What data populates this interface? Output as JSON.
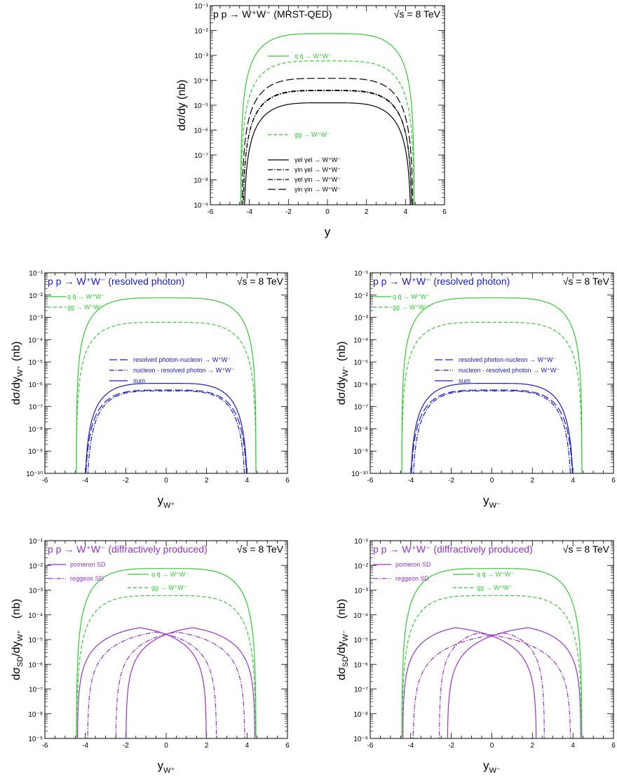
{
  "chart_data": [
    {
      "type": "line",
      "title": "p p → W⁺W⁻ (MRST-QED)",
      "energy": "√s = 8 TeV",
      "xlabel": "y",
      "ylabel": "dσ/dy (nb)",
      "xlim": [
        -6,
        6
      ],
      "ylim_log10": [
        -9,
        -1
      ],
      "y_scale": "log",
      "x_ticks": [
        "-6",
        "-4",
        "-2",
        "0",
        "2",
        "4",
        "6"
      ],
      "y_ticks": [
        "10⁻¹",
        "10⁻²",
        "10⁻³",
        "10⁻⁴",
        "10⁻⁵",
        "10⁻⁶",
        "10⁻⁷",
        "10⁻⁸",
        "10⁻⁹"
      ],
      "series": [
        {
          "name": "q q̄ → W⁺W⁻",
          "color": "#33cc33",
          "style": "solid",
          "peak": 0.0075,
          "edge": 4.45,
          "p": 1.3
        },
        {
          "name": "gg → W⁺W⁻",
          "color": "#33cc33",
          "style": "dashed",
          "peak": 0.0006,
          "edge": 4.45,
          "p": 1.3
        },
        {
          "name": "γel γel → W⁺W⁻",
          "color": "#000000",
          "style": "solid",
          "peak": 1.25e-05,
          "edge": 4.3,
          "p": 1.3
        },
        {
          "name": "γin γel → W⁺W⁻",
          "color": "#000000",
          "style": "dashdot",
          "peak": 4e-05,
          "edge": 4.35,
          "p": 1.3
        },
        {
          "name": "γel γin → W⁺W⁻",
          "color": "#000000",
          "style": "dashdot",
          "peak": 3.8e-05,
          "edge": 4.35,
          "p": 1.3
        },
        {
          "name": "γin γin → W⁺W⁻",
          "color": "#000000",
          "style": "longdash",
          "peak": 0.00012,
          "edge": 4.4,
          "p": 1.3
        }
      ]
    },
    {
      "type": "line",
      "title": "p p → W⁺W⁻ (resolved photon)",
      "energy": "√s = 8 TeV",
      "xlabel": "y",
      "xsub": "W⁺",
      "ylabel": "dσ/dy",
      "ysub": "W⁺",
      "yunit": "(nb)",
      "xlim": [
        -6,
        6
      ],
      "ylim_log10": [
        -10,
        -1
      ],
      "y_scale": "log",
      "x_ticks": [
        "-6",
        "-4",
        "-2",
        "0",
        "2",
        "4",
        "6"
      ],
      "y_ticks": [
        "10⁻¹",
        "10⁻²",
        "10⁻³",
        "10⁻⁴",
        "10⁻⁵",
        "10⁻⁶",
        "10⁻⁷",
        "10⁻⁸",
        "10⁻⁹",
        "10⁻¹⁰"
      ],
      "series": [
        {
          "name": "q q̄ → W⁺W⁻",
          "color": "#33cc33",
          "style": "solid",
          "peak": 0.0075,
          "edge": 4.45,
          "p": 1.3
        },
        {
          "name": "gg → W⁺W⁻",
          "color": "#33cc33",
          "style": "dashed",
          "peak": 0.0006,
          "edge": 4.45,
          "p": 1.3
        },
        {
          "name": "resolved photon-nucleon  → W⁺W⁻",
          "color": "#1a1acc",
          "style": "longdash",
          "peak": 5.5e-07,
          "edge": 4.05,
          "p": 1.4
        },
        {
          "name": "nucleon - resolved photon → W⁺W⁻",
          "color": "#1a1acc",
          "style": "dashdot",
          "peak": 5e-07,
          "edge": 3.95,
          "p": 1.4
        },
        {
          "name": "sum",
          "color": "#1a1acc",
          "style": "solid",
          "peak": 1.1e-06,
          "edge": 4.05,
          "p": 1.4
        }
      ]
    },
    {
      "type": "line",
      "title": "p p → W⁺W⁻ (resolved photon)",
      "energy": "√s = 8 TeV",
      "xlabel": "y",
      "xsub": "W⁻",
      "ylabel": "dσ/dy",
      "ysub": "W⁻",
      "yunit": "(nb)",
      "xlim": [
        -6,
        6
      ],
      "ylim_log10": [
        -10,
        -1
      ],
      "y_scale": "log",
      "x_ticks": [
        "-6",
        "-4",
        "-2",
        "0",
        "2",
        "4",
        "6"
      ],
      "y_ticks": [
        "10⁻¹",
        "10⁻²",
        "10⁻³",
        "10⁻⁴",
        "10⁻⁵",
        "10⁻⁶",
        "10⁻⁷",
        "10⁻⁸",
        "10⁻⁹",
        "10⁻¹⁰"
      ],
      "series": [
        {
          "name": "q q̄ → W⁺W⁻",
          "color": "#33cc33",
          "style": "solid",
          "peak": 0.0075,
          "edge": 4.45,
          "p": 1.3
        },
        {
          "name": "gg → W⁺W⁻",
          "color": "#33cc33",
          "style": "dashed",
          "peak": 0.0006,
          "edge": 4.45,
          "p": 1.3
        },
        {
          "name": "resolved photon-nucleon  → W⁺W⁻",
          "color": "#1a1acc",
          "style": "longdash",
          "peak": 5.5e-07,
          "edge": 4.05,
          "p": 1.4
        },
        {
          "name": "nucleon - resolved photon → W⁺W⁻",
          "color": "#1a1acc",
          "style": "dashdot",
          "peak": 5e-07,
          "edge": 3.95,
          "p": 1.4
        },
        {
          "name": "sum",
          "color": "#1a1acc",
          "style": "solid",
          "peak": 1.1e-06,
          "edge": 4.05,
          "p": 1.4
        }
      ]
    },
    {
      "type": "line",
      "title": "p p → W⁺W⁻ (diffractively produced)",
      "energy": "√s = 8 TeV",
      "xlabel": "y",
      "xsub": "W⁺",
      "ylabel": "dσ",
      "ylabel_sub": "SD",
      "ylabel_mid": "/dy",
      "ysub": "W⁺",
      "yunit": "(nb)",
      "xlim": [
        -6,
        6
      ],
      "ylim_log10": [
        -9,
        -1
      ],
      "y_scale": "log",
      "x_ticks": [
        "-6",
        "-4",
        "-2",
        "0",
        "2",
        "4",
        "6"
      ],
      "y_ticks": [
        "10⁻¹",
        "10⁻²",
        "10⁻³",
        "10⁻⁴",
        "10⁻⁵",
        "10⁻⁶",
        "10⁻⁷",
        "10⁻⁸",
        "10⁻⁹"
      ],
      "legend_left": [
        "pomeron SD",
        "reggeon SD"
      ],
      "series": [
        {
          "name": "q q̄ → W⁺W⁻",
          "color": "#33cc33",
          "style": "solid",
          "peak": 0.0075,
          "edge": 4.45,
          "p": 1.3
        },
        {
          "name": "gg → W⁺W⁻",
          "color": "#33cc33",
          "style": "dashed",
          "peak": 0.0006,
          "edge": 4.45,
          "p": 1.3
        },
        {
          "name": "pomeron SD",
          "color": "#9933cc",
          "style": "solid",
          "kind": "asym",
          "peak": 3e-05,
          "center": -1.3,
          "left": 4.4,
          "right": 2.0
        },
        {
          "name": "pomeron SD",
          "color": "#9933cc",
          "style": "solid",
          "kind": "asym",
          "peak": 3e-05,
          "center": 1.3,
          "left": 2.0,
          "right": 4.4
        },
        {
          "name": "reggeon SD",
          "color": "#9933cc",
          "style": "dashdot",
          "kind": "asym",
          "peak": 2e-05,
          "center": -0.5,
          "left": 3.9,
          "right": 2.5
        },
        {
          "name": "reggeon SD",
          "color": "#9933cc",
          "style": "dashdot",
          "kind": "asym",
          "peak": 2e-05,
          "center": 0.5,
          "left": 2.5,
          "right": 3.9
        }
      ]
    },
    {
      "type": "line",
      "title": "p p → W⁺W⁻ (diffractively produced)",
      "energy": "√s = 8 TeV",
      "xlabel": "y",
      "xsub": "W⁻",
      "ylabel": "dσ",
      "ylabel_sub": "SD",
      "ylabel_mid": "/dy",
      "ysub": "W⁻",
      "yunit": "(nb)",
      "xlim": [
        -6,
        6
      ],
      "ylim_log10": [
        -9,
        -1
      ],
      "y_scale": "log",
      "x_ticks": [
        "-6",
        "-4",
        "-2",
        "0",
        "2",
        "4",
        "6"
      ],
      "y_ticks": [
        "10⁻¹",
        "10⁻²",
        "10⁻³",
        "10⁻⁴",
        "10⁻⁵",
        "10⁻⁶",
        "10⁻⁷",
        "10⁻⁸",
        "10⁻⁹"
      ],
      "legend_left": [
        "pomeron SD",
        "reggeon SD"
      ],
      "series": [
        {
          "name": "q q̄ → W⁺W⁻",
          "color": "#33cc33",
          "style": "solid",
          "peak": 0.0075,
          "edge": 4.45,
          "p": 1.3
        },
        {
          "name": "gg → W⁺W⁻",
          "color": "#33cc33",
          "style": "dashed",
          "peak": 0.0006,
          "edge": 4.45,
          "p": 1.3
        },
        {
          "name": "pomeron SD",
          "color": "#9933cc",
          "style": "solid",
          "kind": "asym",
          "peak": 3e-05,
          "center": -1.8,
          "left": 4.4,
          "right": 2.2
        },
        {
          "name": "pomeron SD",
          "color": "#9933cc",
          "style": "solid",
          "kind": "asym",
          "peak": 3e-05,
          "center": 1.8,
          "left": 2.2,
          "right": 4.4
        },
        {
          "name": "reggeon SD",
          "color": "#9933cc",
          "style": "dashdot",
          "kind": "asym",
          "peak": 1.8e-05,
          "center": -0.7,
          "left": 2.6,
          "right": 3.9
        },
        {
          "name": "reggeon SD",
          "color": "#9933cc",
          "style": "dashdot",
          "kind": "asym",
          "peak": 1.8e-05,
          "center": 0.7,
          "left": 3.9,
          "right": 2.6
        }
      ]
    }
  ]
}
